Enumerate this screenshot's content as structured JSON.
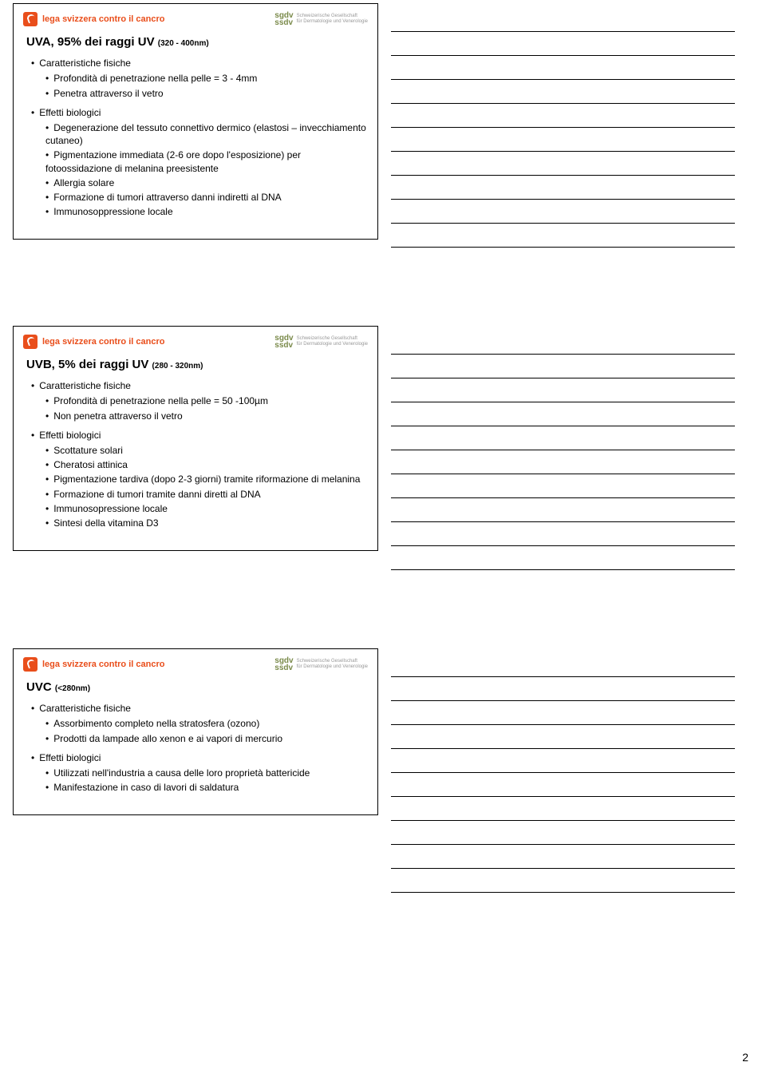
{
  "brand": {
    "name": "lega svizzera contro il cancro",
    "brand_color": "#e94e1b",
    "sub_logo_mark": "sgdv\nssdv",
    "sub_logo_lines": "Schweizerische Gesellschaft\nfür Dermatologie und Venerologie"
  },
  "page_number": "2",
  "notes_lines_per_slide": 10,
  "slides": [
    {
      "title_main": "UVA, 95% dei raggi UV ",
      "title_sub": "(320 - 400nm)",
      "sections": [
        {
          "heading": "Caratteristiche fisiche",
          "items": [
            "Profondità di penetrazione nella pelle = 3 - 4mm",
            "Penetra attraverso il vetro"
          ]
        },
        {
          "heading": "Effetti biologici",
          "items": [
            "Degenerazione del tessuto connettivo dermico (elastosi – invecchiamento cutaneo)",
            "Pigmentazione immediata (2-6 ore dopo l'esposizione) per fotoossidazione di melanina preesistente",
            "Allergia solare",
            "Formazione di tumori attraverso danni indiretti al DNA",
            "Immunosoppressione locale"
          ]
        }
      ]
    },
    {
      "title_main": "UVB, 5% dei raggi UV ",
      "title_sub": "(280 - 320nm)",
      "sections": [
        {
          "heading": "Caratteristiche fisiche",
          "items": [
            "Profondità di penetrazione nella pelle = 50 -100µm",
            "Non penetra attraverso il vetro"
          ]
        },
        {
          "heading": "Effetti biologici",
          "items": [
            "Scottature solari",
            "Cheratosi attinica",
            "Pigmentazione tardiva (dopo 2-3 giorni) tramite riformazione di melanina",
            "Formazione di tumori tramite danni diretti al  DNA",
            "Immunosopressione locale",
            "Sintesi della vitamina D3"
          ]
        }
      ]
    },
    {
      "title_main": "UVC ",
      "title_sub": "(<280nm)",
      "sections": [
        {
          "heading": "Caratteristiche fisiche",
          "items": [
            "Assorbimento completo nella stratosfera (ozono)",
            "Prodotti da lampade allo xenon e ai vapori di mercurio"
          ]
        },
        {
          "heading": "Effetti biologici",
          "items": [
            "Utilizzati nell'industria a causa delle loro proprietà battericide",
            "Manifestazione in caso di lavori di saldatura"
          ]
        }
      ]
    }
  ]
}
